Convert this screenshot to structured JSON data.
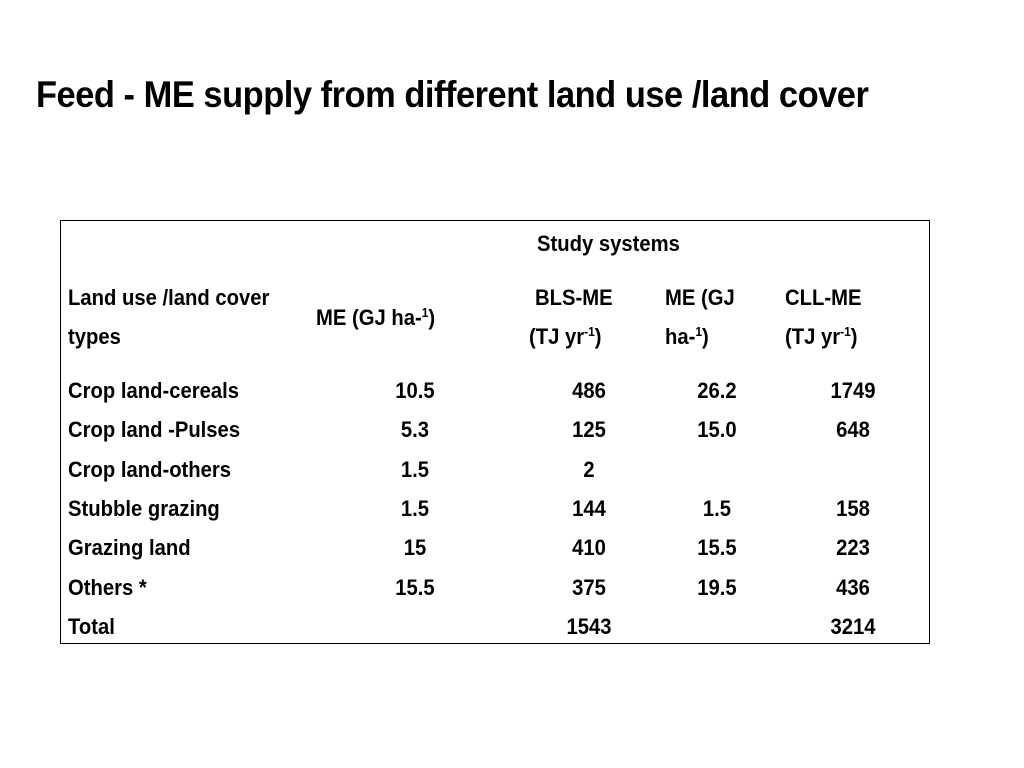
{
  "slide": {
    "title": "Feed - ME supply from different land use /land cover"
  },
  "table": {
    "group_header": "Study systems",
    "headers": {
      "land_use_line1": "Land use /land cover",
      "land_use_line2": "types",
      "me1_text": "ME (GJ ha-",
      "me1_sup": "1",
      "me1_close": ")",
      "bls_line1": "BLS-ME",
      "bls_line2_text": "(TJ yr",
      "bls_line2_sup": "-1",
      "bls_line2_close": ")",
      "me2_line1": "ME  (GJ",
      "me2_line2_text": "ha-",
      "me2_line2_sup": "1",
      "me2_line2_close": ")",
      "cll_line1": "CLL-ME",
      "cll_line2_text": "(TJ yr",
      "cll_line2_sup": "-1",
      "cll_line2_close": ")"
    },
    "rows": [
      {
        "label": "Crop land-cereals",
        "me1": "10.5",
        "bls": "486",
        "me2": "26.2",
        "cll": "1749"
      },
      {
        "label": "Crop land -Pulses",
        "me1": "5.3",
        "bls": "125",
        "me2": "15.0",
        "cll": "648"
      },
      {
        "label": "Crop land-others",
        "me1": "1.5",
        "bls": "2",
        "me2": "",
        "cll": ""
      },
      {
        "label": "Stubble grazing",
        "me1": "1.5",
        "bls": "144",
        "me2": "1.5",
        "cll": "158"
      },
      {
        "label": "Grazing land",
        "me1": "15",
        "bls": "410",
        "me2": "15.5",
        "cll": "223"
      },
      {
        "label": "Others *",
        "me1": "15.5",
        "bls": "375",
        "me2": "19.5",
        "cll": "436"
      },
      {
        "label": "Total",
        "me1": "",
        "bls": "1543",
        "me2": "",
        "cll": "3214"
      }
    ]
  }
}
